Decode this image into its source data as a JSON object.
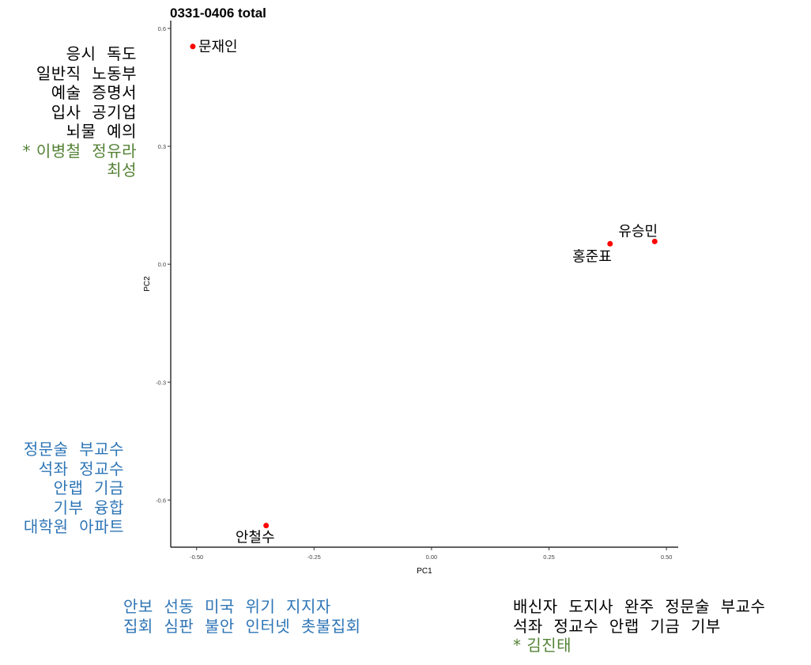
{
  "chart_data": {
    "type": "scatter",
    "title": "0331-0406 total",
    "xlabel": "PC1",
    "ylabel": "PC2",
    "xlim": [
      -0.555,
      0.525
    ],
    "ylim": [
      -0.72,
      0.62
    ],
    "x_ticks": [
      -0.5,
      -0.25,
      0.0,
      0.25,
      0.5
    ],
    "x_tick_labels": [
      "-0.50",
      "-0.25",
      "0.00",
      "0.25",
      "0.50"
    ],
    "y_ticks": [
      -0.6,
      -0.3,
      0.0,
      0.3,
      0.6
    ],
    "y_tick_labels": [
      "-0.6",
      "-0.3",
      "0.0",
      "0.3",
      "0.6"
    ],
    "grid": false,
    "point_color": "#ff0000",
    "points": [
      {
        "label": "문재인",
        "x": -0.508,
        "y": 0.554,
        "label_side": "right"
      },
      {
        "label": "유승민",
        "x": 0.475,
        "y": 0.058,
        "label_side": "top"
      },
      {
        "label": "홍준표",
        "x": 0.38,
        "y": 0.052,
        "label_side": "bottom-left"
      },
      {
        "label": "안철수",
        "x": -0.352,
        "y": -0.665,
        "label_side": "bottom"
      }
    ]
  },
  "notes": {
    "top_left": [
      {
        "text": "응시  독도",
        "color": "black"
      },
      {
        "text": "일반직  노동부",
        "color": "black"
      },
      {
        "text": "예술  증명서",
        "color": "black"
      },
      {
        "text": "입사  공기업",
        "color": "black"
      },
      {
        "text": "뇌물  예의",
        "color": "black"
      },
      {
        "text": "* 이병철  정유라",
        "color": "green"
      },
      {
        "text": "최성",
        "color": "green"
      }
    ],
    "mid_left": [
      {
        "text": "정문술  부교수",
        "color": "blue"
      },
      {
        "text": "석좌  정교수",
        "color": "blue"
      },
      {
        "text": "안랩  기금",
        "color": "blue"
      },
      {
        "text": "기부  융합",
        "color": "blue"
      },
      {
        "text": "대학원  아파트",
        "color": "blue"
      }
    ],
    "bottom_center": [
      {
        "text": "안보  선동  미국  위기  지지자",
        "color": "blue"
      },
      {
        "text": "집회  심판  불안  인터넷  촛불집회",
        "color": "blue"
      }
    ],
    "bottom_right": [
      {
        "text": "배신자  도지사  완주  정문술  부교수",
        "color": "black"
      },
      {
        "text": "석좌  정교수  안랩  기금  기부",
        "color": "black"
      },
      {
        "text": "* 김진태",
        "color": "green"
      }
    ]
  }
}
